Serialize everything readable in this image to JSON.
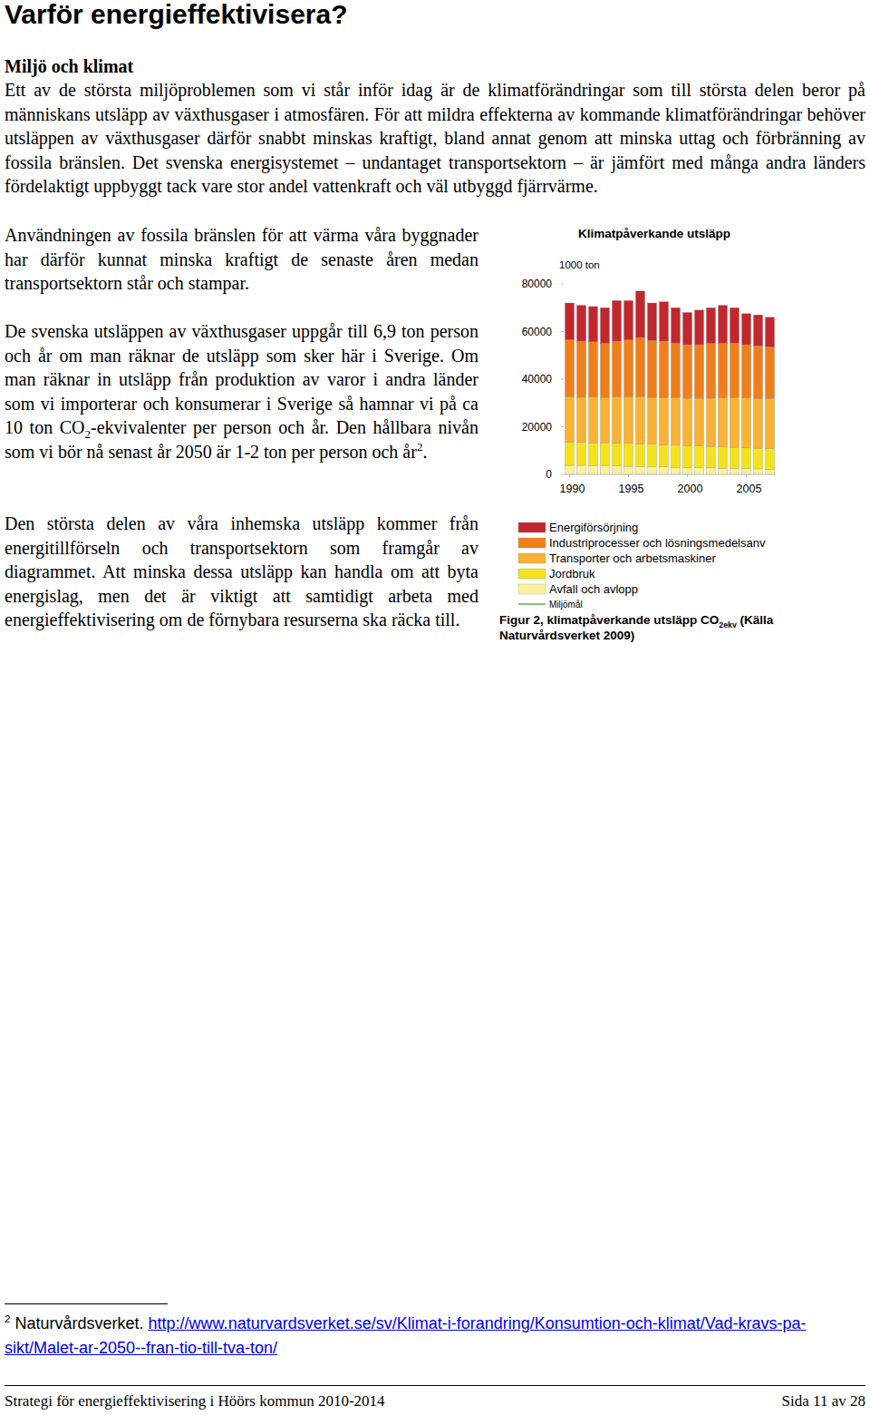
{
  "document": {
    "heading": "Varför energieffektivisera?",
    "subheading": "Miljö och klimat",
    "paragraphs": [
      [
        {
          "text": "Ett av de största miljöproblemen som vi står inför idag är de klimatförändringar som till största delen beror på människans utsläpp av växthusgaser i atmosfären. För att mildra effekterna av kommande klimatförändringar behöver utsläppen av växthusgaser därför snabbt minskas kraftigt, bland annat genom att minska uttag och förbränning av fossila bränslen. Det svenska energisystemet – undantaget transportsektorn – är jämfört med många andra länders fördelaktigt uppbyggt tack vare stor andel vattenkraft och väl utbyggd fjärrvärme."
        }
      ],
      [
        {
          "text": "Användningen av fossila bränslen för att värma våra byggnader har därför kunnat minska kraftigt de senaste åren medan transportsektorn står och stampar."
        }
      ],
      [
        {
          "text": "De svenska utsläppen av växthusgaser uppgår till 6,9 ton person och år om man räknar de utsläpp som sker här i Sverige. Om man räknar in utsläpp från produktion av varor i andra länder som vi importerar och konsumerar i Sverige så hamnar vi på ca 10 ton CO"
        },
        {
          "sub": "2"
        },
        {
          "text": "-ekvivalenter per person och år. Den hållbara nivån som vi bör nå senast år 2050 är 1-2 ton per person och år"
        },
        {
          "sup": "2"
        },
        {
          "text": "."
        }
      ],
      [
        {
          "text": "Den största delen av våra inhemska utsläpp kommer från energitillförseln och transportsektorn som framgår av diagrammet. Att minska dessa utsläpp kan handla om att byta energislag, men det är viktigt att samtidigt arbeta med energieffektivisering om de förnybara resurserna ska räcka till."
        }
      ]
    ],
    "figure_caption": [
      {
        "text": "Figur 2, klimatpåverkande utsläpp CO"
      },
      {
        "sub": "2ekv"
      },
      {
        "text": " (Källa Naturvårdsverket 2009)"
      }
    ],
    "footnote": {
      "number": "2",
      "text": "Naturvårdsverket. ",
      "link": "http://www.naturvardsverket.se/sv/Klimat-i-forandring/Konsumtion-och-klimat/Vad-kravs-pa-sikt/Malet-ar-2050--fran-tio-till-tva-ton/"
    },
    "footer": {
      "left": "Strategi för energieffektivisering i Höörs kommun 2010-2014",
      "right": "Sida 11 av 28"
    }
  },
  "chart_data": {
    "type": "bar",
    "title": "Klimatpåverkande utsläpp",
    "ylabel": "1000 ton",
    "stacked": true,
    "grid": false,
    "legend": "bottom",
    "x": [
      1990,
      1991,
      1992,
      1993,
      1994,
      1995,
      1996,
      1997,
      1998,
      1999,
      2000,
      2001,
      2002,
      2003,
      2004,
      2005,
      2006,
      2007
    ],
    "xlim": [
      1989.5,
      2007.5
    ],
    "xticks": [
      1990,
      1995,
      2000,
      2005
    ],
    "ylim": [
      0,
      80000
    ],
    "yticks": [
      0,
      20000,
      40000,
      60000,
      80000
    ],
    "series": [
      {
        "name": "Energiförsörjning",
        "color": "#c1272d",
        "values": [
          15500,
          15000,
          14800,
          15000,
          17000,
          16500,
          19500,
          15800,
          16500,
          14800,
          13500,
          14500,
          15000,
          16000,
          14800,
          13000,
          13000,
          12500
        ]
      },
      {
        "name": "Industriprocesser och lösningsmedelsanv",
        "color": "#f07f1b",
        "values": [
          23900,
          23600,
          23200,
          22700,
          23500,
          23900,
          24900,
          23900,
          23700,
          22900,
          22500,
          22600,
          23000,
          22900,
          23000,
          22400,
          22200,
          21600
        ]
      },
      {
        "name": "Transporter och arbetsmaskiner",
        "color": "#f9b233",
        "values": [
          19000,
          19000,
          19300,
          19200,
          19500,
          19600,
          19700,
          19600,
          19800,
          20000,
          19900,
          20000,
          20300,
          20600,
          20800,
          20900,
          20800,
          21000
        ]
      },
      {
        "name": "Jordbruk",
        "color": "#f4e31c",
        "values": [
          9800,
          9600,
          9500,
          9500,
          9500,
          9600,
          9600,
          9500,
          9400,
          9300,
          9200,
          9100,
          9000,
          8900,
          8900,
          8800,
          8700,
          8700
        ]
      },
      {
        "name": "Avfall och avlopp",
        "color": "#faf29a",
        "values": [
          3800,
          3800,
          3700,
          3600,
          3500,
          3400,
          3300,
          3200,
          3100,
          3000,
          2900,
          2800,
          2700,
          2600,
          2500,
          2400,
          2300,
          2200
        ]
      },
      {
        "name": "Miljömål",
        "color": "#5fb04a",
        "type": "line",
        "values": [
          null,
          null,
          null,
          null,
          null,
          null,
          null,
          null,
          null,
          null,
          null,
          null,
          null,
          null,
          null,
          null,
          null,
          null
        ]
      }
    ]
  }
}
